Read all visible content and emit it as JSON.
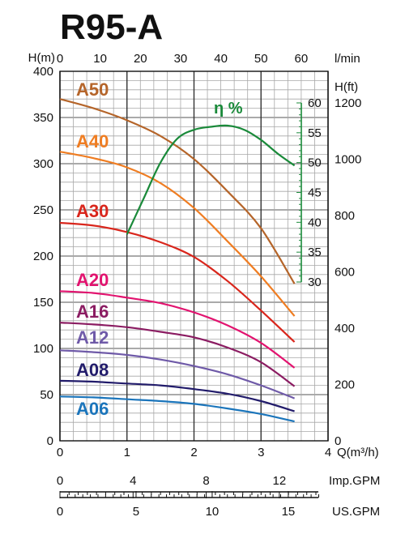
{
  "chart_data": {
    "type": "line",
    "title": "R95-A",
    "top_axis": {
      "label": "l/min",
      "ticks": [
        0,
        10,
        20,
        30,
        40,
        50,
        60
      ]
    },
    "x_axis": {
      "label": "Q(m³/h)",
      "range": [
        0,
        4
      ],
      "ticks": [
        0,
        1,
        2,
        3,
        4
      ]
    },
    "left_axis": {
      "label": "H(m)",
      "range": [
        0,
        400
      ],
      "ticks": [
        0,
        50,
        100,
        150,
        200,
        250,
        300,
        350,
        400
      ]
    },
    "right_axis": {
      "label": "H(ft)",
      "ticks": [
        0,
        200,
        400,
        600,
        800,
        1000,
        1200
      ]
    },
    "efficiency_axis": {
      "label": "η %",
      "range": [
        30,
        60
      ],
      "ticks": [
        30,
        35,
        40,
        45,
        50,
        55,
        60
      ]
    },
    "imp_gpm_axis": {
      "label": "Imp.GPM",
      "ticks": [
        0,
        4,
        8,
        12
      ]
    },
    "us_gpm_axis": {
      "label": "US.GPM",
      "ticks": [
        0,
        5,
        10,
        15
      ]
    },
    "grid": true,
    "series": [
      {
        "name": "A50",
        "color": "#b5652a",
        "x": [
          0,
          0.5,
          1.0,
          1.5,
          2.0,
          2.5,
          3.0,
          3.5
        ],
        "y": [
          370,
          360,
          347,
          330,
          305,
          270,
          230,
          170
        ]
      },
      {
        "name": "A40",
        "color": "#ef7d22",
        "x": [
          0,
          0.5,
          1.0,
          1.5,
          2.0,
          2.5,
          3.0,
          3.5
        ],
        "y": [
          313,
          306,
          296,
          279,
          252,
          216,
          178,
          135
        ]
      },
      {
        "name": "A30",
        "color": "#d9261c",
        "x": [
          0,
          0.5,
          1.0,
          1.5,
          2.0,
          2.5,
          3.0,
          3.5
        ],
        "y": [
          236,
          233,
          226,
          215,
          199,
          173,
          141,
          107
        ]
      },
      {
        "name": "A20",
        "color": "#e2136f",
        "x": [
          0,
          0.5,
          1.0,
          1.5,
          2.0,
          2.5,
          3.0,
          3.5
        ],
        "y": [
          162,
          160,
          155,
          149,
          139,
          125,
          106,
          79
        ]
      },
      {
        "name": "A16",
        "color": "#8b1c62",
        "x": [
          0,
          0.5,
          1.0,
          1.5,
          2.0,
          2.5,
          3.0,
          3.5
        ],
        "y": [
          128,
          126,
          123,
          118,
          112,
          101,
          85,
          59
        ]
      },
      {
        "name": "A12",
        "color": "#6f5aa8",
        "x": [
          0,
          0.5,
          1.0,
          1.5,
          2.0,
          2.5,
          3.0,
          3.5
        ],
        "y": [
          98,
          96,
          93,
          88,
          81,
          72,
          60,
          46
        ]
      },
      {
        "name": "A08",
        "color": "#221c6b",
        "x": [
          0,
          0.5,
          1.0,
          1.5,
          2.0,
          2.5,
          3.0,
          3.5
        ],
        "y": [
          65,
          64,
          62,
          60,
          56,
          51,
          43,
          32
        ]
      },
      {
        "name": "A06",
        "color": "#1b75bb",
        "x": [
          0,
          0.5,
          1.0,
          1.5,
          2.0,
          2.5,
          3.0,
          3.5
        ],
        "y": [
          48,
          47,
          45,
          43,
          40,
          35,
          29,
          21
        ]
      }
    ],
    "efficiency": {
      "name": "η %",
      "color": "#1a8a3a",
      "x": [
        1.0,
        1.25,
        1.5,
        1.75,
        2.0,
        2.25,
        2.5,
        2.75,
        3.0,
        3.25,
        3.5
      ],
      "y": [
        38.0,
        44.0,
        50.0,
        54.0,
        55.5,
        56.0,
        56.2,
        55.5,
        53.8,
        51.5,
        49.5
      ]
    }
  }
}
